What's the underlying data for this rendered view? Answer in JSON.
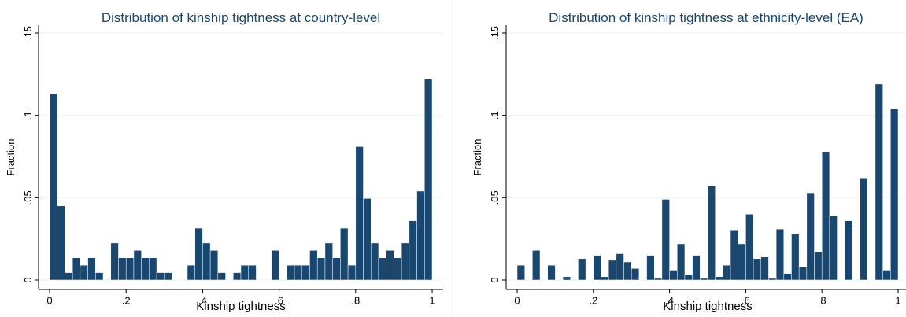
{
  "chart_data": [
    {
      "type": "histogram",
      "title": "Distribution of kinship tightness at country-level",
      "x_label": "Kinship tightness",
      "y_label": "Fraction",
      "color": "#1a476f",
      "grid": true,
      "bins": [
        0,
        0.02,
        0.04,
        0.06,
        0.08,
        0.1,
        0.12,
        0.14,
        0.16,
        0.18,
        0.2,
        0.22,
        0.24,
        0.26,
        0.28,
        0.3,
        0.32,
        0.34,
        0.36,
        0.38,
        0.4,
        0.42,
        0.44,
        0.46,
        0.48,
        0.5,
        0.52,
        0.54,
        0.56,
        0.58,
        0.6,
        0.62,
        0.64,
        0.66,
        0.68,
        0.7,
        0.72,
        0.74,
        0.76,
        0.78,
        0.8,
        0.82,
        0.84,
        0.86,
        0.88,
        0.9,
        0.92,
        0.94,
        0.96,
        0.98,
        1
      ],
      "values": [
        0.113,
        0.045,
        0.0045,
        0.0135,
        0.009,
        0.0135,
        0.0045,
        0,
        0.0225,
        0.0135,
        0.0135,
        0.018,
        0.0135,
        0.0135,
        0.0045,
        0.0045,
        0,
        0,
        0.009,
        0.0315,
        0.0225,
        0.018,
        0.0045,
        0,
        0.0045,
        0.009,
        0.009,
        0,
        0,
        0.018,
        0,
        0.009,
        0.009,
        0.009,
        0.018,
        0.0135,
        0.0225,
        0.0135,
        0.0315,
        0.009,
        0.081,
        0.0495,
        0.0225,
        0.0135,
        0.018,
        0.0135,
        0.0225,
        0.036,
        0.054,
        0.122
      ],
      "xlim": [
        0,
        1
      ],
      "ylim": [
        0,
        0.15
      ],
      "xticks": [
        0,
        {
          "value": 0.2,
          "label": ".2"
        },
        {
          "value": 0.4,
          "label": ".4"
        },
        {
          "value": 0.6,
          "label": ".6"
        },
        {
          "value": 0.8,
          "label": ".8"
        },
        1
      ],
      "yticks": [
        0,
        {
          "value": 0.05,
          "label": ".05"
        },
        {
          "value": 0.1,
          "label": ".1"
        },
        {
          "value": 0.15,
          "label": ".15"
        }
      ]
    },
    {
      "type": "histogram",
      "title": "Distribution of kinship tightness at ethnicity-level (EA)",
      "x_label": "Kinship tightness",
      "y_label": "Fraction",
      "color": "#1a476f",
      "grid": true,
      "bins": [
        0,
        0.02,
        0.04,
        0.06,
        0.08,
        0.1,
        0.12,
        0.14,
        0.16,
        0.18,
        0.2,
        0.22,
        0.24,
        0.26,
        0.28,
        0.3,
        0.32,
        0.34,
        0.36,
        0.38,
        0.4,
        0.42,
        0.44,
        0.46,
        0.48,
        0.5,
        0.52,
        0.54,
        0.56,
        0.58,
        0.6,
        0.62,
        0.64,
        0.66,
        0.68,
        0.7,
        0.72,
        0.74,
        0.76,
        0.78,
        0.8,
        0.82,
        0.84,
        0.86,
        0.88,
        0.9,
        0.92,
        0.94,
        0.96,
        0.98,
        1
      ],
      "values": [
        0.009,
        0,
        0.018,
        0,
        0.009,
        0,
        0.002,
        0,
        0.013,
        0,
        0.015,
        0.002,
        0.012,
        0.016,
        0.011,
        0.007,
        0,
        0.015,
        0.001,
        0.049,
        0.006,
        0.022,
        0.003,
        0.015,
        0.001,
        0.057,
        0.002,
        0.009,
        0.03,
        0.022,
        0.04,
        0.013,
        0.014,
        0.001,
        0.031,
        0.004,
        0.028,
        0.008,
        0.053,
        0.017,
        0.078,
        0.039,
        0,
        0.036,
        0,
        0.062,
        0,
        0.119,
        0.006,
        0.104
      ],
      "xlim": [
        0,
        1
      ],
      "ylim": [
        0,
        0.15
      ],
      "xticks": [
        0,
        {
          "value": 0.2,
          "label": ".2"
        },
        {
          "value": 0.4,
          "label": ".4"
        },
        {
          "value": 0.6,
          "label": ".6"
        },
        {
          "value": 0.8,
          "label": ".8"
        },
        1
      ],
      "yticks": [
        0,
        {
          "value": 0.05,
          "label": ".05"
        },
        {
          "value": 0.1,
          "label": ".1"
        },
        {
          "value": 0.15,
          "label": ".15"
        }
      ]
    }
  ]
}
